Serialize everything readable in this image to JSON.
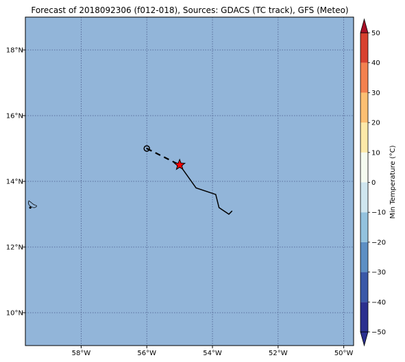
{
  "title": "Forecast of 2018092306 (f012-018), Sources: GDACS (TC track), GFS (Meteo)",
  "map": {
    "ocean_color": "#92b5d9",
    "grid_color": "#4a5a8a",
    "lon_ticks": [
      {
        "value": -58,
        "label": "58°W"
      },
      {
        "value": -56,
        "label": "56°W"
      },
      {
        "value": -54,
        "label": "54°W"
      },
      {
        "value": -52,
        "label": "52°W"
      },
      {
        "value": -50,
        "label": "50°W"
      }
    ],
    "lat_ticks": [
      {
        "value": 18,
        "label": "18°N"
      },
      {
        "value": 16,
        "label": "16°N"
      },
      {
        "value": 14,
        "label": "14°N"
      },
      {
        "value": 12,
        "label": "12°N"
      },
      {
        "value": 10,
        "label": "10°N"
      }
    ],
    "lon_range": [
      -59.7,
      -49.7
    ],
    "lat_range": [
      9.0,
      19.0
    ]
  },
  "track": {
    "past_point": {
      "lon": -56.0,
      "lat": 15.0
    },
    "current_position": {
      "lon": -55.0,
      "lat": 14.5
    },
    "forecast": [
      {
        "lon": -55.0,
        "lat": 14.5
      },
      {
        "lon": -54.5,
        "lat": 13.8
      },
      {
        "lon": -53.9,
        "lat": 13.6
      },
      {
        "lon": -53.8,
        "lat": 13.2
      },
      {
        "lon": -53.5,
        "lat": 13.0
      },
      {
        "lon": -53.4,
        "lat": 13.1
      }
    ],
    "star_color": "#ff0000"
  },
  "island": {
    "name_icon": "island-outline-icon",
    "lon": -59.55,
    "lat": 13.2
  },
  "colorbar": {
    "label": "Min Temperature (°C)",
    "ticks": [
      {
        "value": 50,
        "label": "50"
      },
      {
        "value": 40,
        "label": "40"
      },
      {
        "value": 30,
        "label": "30"
      },
      {
        "value": 20,
        "label": "20"
      },
      {
        "value": 10,
        "label": "10"
      },
      {
        "value": 0,
        "label": "0"
      },
      {
        "value": -10,
        "label": "−10"
      },
      {
        "value": -20,
        "label": "−20"
      },
      {
        "value": -30,
        "label": "−30"
      },
      {
        "value": -40,
        "label": "−40"
      },
      {
        "value": -50,
        "label": "−50"
      }
    ],
    "colors": [
      "#2b2f8f",
      "#3a58a8",
      "#5d8fc4",
      "#93c2de",
      "#cfe6ef",
      "#f5fbf0",
      "#fde9a8",
      "#fcbf72",
      "#f3814f",
      "#d8412f",
      "#a80f26"
    ]
  }
}
